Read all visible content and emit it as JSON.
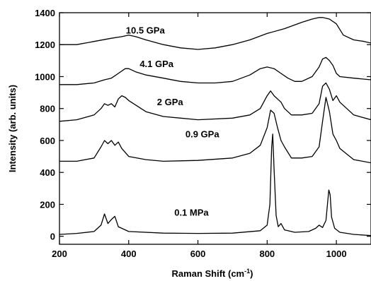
{
  "chart_data": {
    "type": "line",
    "xlabel": "Raman Shift (cm",
    "xlabel_sup": "-1",
    "xlabel_tail": ")",
    "ylabel": "Intensity (arb. units)",
    "xlim": [
      200,
      1100
    ],
    "ylim": [
      -50,
      1400
    ],
    "xticks": [
      200,
      400,
      600,
      800,
      1000
    ],
    "yticks": [
      0,
      200,
      400,
      600,
      800,
      1000,
      1200,
      1400
    ],
    "grid": false,
    "series": [
      {
        "name": "0.1 MPa",
        "label_pos": [
          900,
          130
        ],
        "x": [
          200,
          250,
          300,
          320,
          330,
          340,
          350,
          360,
          370,
          400,
          500,
          600,
          700,
          780,
          800,
          808,
          813,
          816,
          820,
          826,
          832,
          840,
          850,
          880,
          920,
          940,
          950,
          960,
          970,
          978,
          982,
          986,
          995,
          1010,
          1050,
          1100
        ],
        "y": [
          12,
          18,
          30,
          70,
          140,
          80,
          105,
          125,
          60,
          30,
          20,
          18,
          20,
          35,
          70,
          200,
          560,
          640,
          420,
          130,
          60,
          80,
          40,
          25,
          30,
          50,
          70,
          55,
          100,
          290,
          260,
          120,
          50,
          25,
          12,
          5
        ]
      },
      {
        "name": "0.9 GPa",
        "label_pos": [
          932,
          620
        ],
        "x": [
          200,
          250,
          300,
          320,
          330,
          340,
          350,
          360,
          370,
          380,
          400,
          450,
          500,
          600,
          700,
          750,
          780,
          800,
          810,
          820,
          830,
          840,
          850,
          870,
          900,
          930,
          950,
          960,
          970,
          980,
          990,
          1000,
          1010,
          1050,
          1100
        ],
        "y": [
          470,
          470,
          490,
          560,
          600,
          580,
          600,
          570,
          590,
          550,
          500,
          480,
          470,
          475,
          490,
          520,
          570,
          680,
          790,
          770,
          680,
          600,
          560,
          490,
          490,
          500,
          560,
          720,
          870,
          780,
          640,
          600,
          550,
          480,
          460
        ]
      },
      {
        "name": "2 GPa",
        "label_pos": [
          850,
          820
        ],
        "x": [
          200,
          250,
          300,
          320,
          330,
          340,
          350,
          360,
          370,
          380,
          390,
          400,
          450,
          500,
          600,
          700,
          750,
          780,
          800,
          810,
          820,
          830,
          840,
          850,
          870,
          900,
          930,
          950,
          960,
          970,
          980,
          990,
          1000,
          1010,
          1050,
          1100
        ],
        "y": [
          720,
          730,
          760,
          800,
          830,
          820,
          830,
          810,
          860,
          880,
          870,
          850,
          780,
          750,
          730,
          740,
          760,
          800,
          880,
          910,
          880,
          860,
          840,
          800,
          760,
          760,
          770,
          830,
          940,
          960,
          920,
          850,
          880,
          840,
          760,
          730
        ]
      },
      {
        "name": "4.1 GPa",
        "label_pos": [
          800,
          1060
        ],
        "x": [
          200,
          250,
          300,
          330,
          350,
          370,
          390,
          400,
          420,
          450,
          500,
          550,
          600,
          650,
          700,
          750,
          780,
          800,
          820,
          840,
          860,
          880,
          900,
          930,
          950,
          960,
          970,
          980,
          990,
          1000,
          1010,
          1050,
          1100
        ],
        "y": [
          950,
          950,
          960,
          980,
          990,
          1020,
          1050,
          1050,
          1030,
          1010,
          990,
          970,
          960,
          960,
          970,
          1010,
          1050,
          1060,
          1050,
          1020,
          990,
          970,
          970,
          1000,
          1060,
          1110,
          1120,
          1100,
          1070,
          1020,
          1000,
          990,
          980
        ]
      },
      {
        "name": "10.5 GPa",
        "label_pos": [
          760,
          1270
        ],
        "x": [
          200,
          250,
          300,
          350,
          380,
          400,
          420,
          450,
          500,
          550,
          600,
          650,
          700,
          750,
          800,
          850,
          900,
          930,
          950,
          960,
          980,
          1000,
          1020,
          1050,
          1080,
          1100
        ],
        "y": [
          1200,
          1200,
          1220,
          1240,
          1250,
          1260,
          1250,
          1230,
          1200,
          1180,
          1170,
          1180,
          1200,
          1230,
          1270,
          1300,
          1340,
          1360,
          1370,
          1370,
          1360,
          1330,
          1260,
          1230,
          1220,
          1210
        ]
      }
    ]
  }
}
